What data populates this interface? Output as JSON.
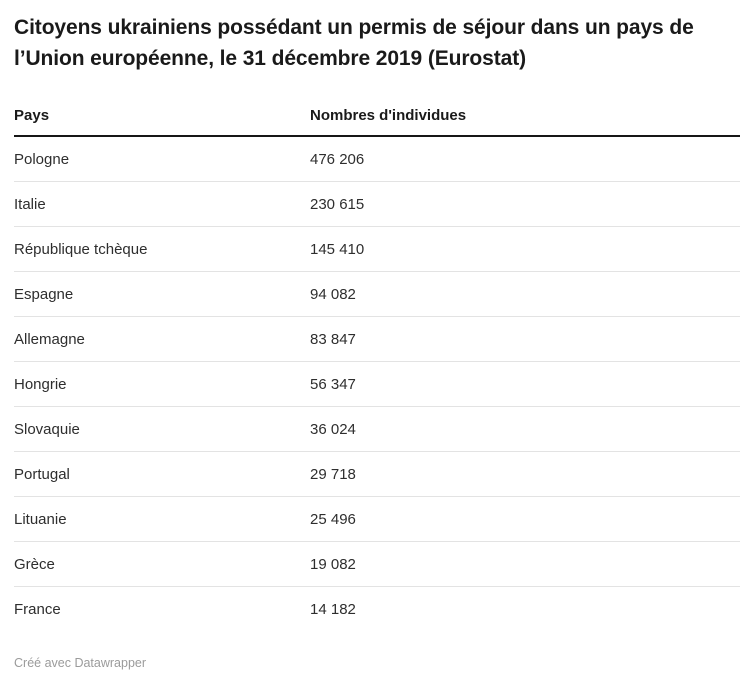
{
  "title": "Citoyens ukrainiens possédant un permis de séjour dans un pays de l’Union européenne, le 31 décembre 2019 (Eurostat)",
  "table": {
    "columns": [
      "Pays",
      "Nombres d'individues"
    ],
    "rows": [
      {
        "pays": "Pologne",
        "valeur": "476 206"
      },
      {
        "pays": "Italie",
        "valeur": "230 615"
      },
      {
        "pays": "République tchèque",
        "valeur": "145 410"
      },
      {
        "pays": "Espagne",
        "valeur": "94 082"
      },
      {
        "pays": "Allemagne",
        "valeur": "83 847"
      },
      {
        "pays": "Hongrie",
        "valeur": "56 347"
      },
      {
        "pays": "Slovaquie",
        "valeur": "36 024"
      },
      {
        "pays": "Portugal",
        "valeur": "29 718"
      },
      {
        "pays": "Lituanie",
        "valeur": "25 496"
      },
      {
        "pays": "Grèce",
        "valeur": "19 082"
      },
      {
        "pays": "France",
        "valeur": "14 182"
      }
    ]
  },
  "footer": {
    "credit": "Créé avec Datawrapper"
  },
  "colors": {
    "background": "#ffffff",
    "title_text": "#1a1a1a",
    "body_text": "#2e2e2e",
    "header_border": "#161616",
    "row_separator": "#e3e3e3",
    "credit_text": "#9b9b9b"
  },
  "chart_data": {
    "type": "table",
    "title": "Citoyens ukrainiens possédant un permis de séjour dans un pays de l’Union européenne, le 31 décembre 2019 (Eurostat)",
    "columns": [
      "Pays",
      "Nombres d'individues"
    ],
    "categories": [
      "Pologne",
      "Italie",
      "République tchèque",
      "Espagne",
      "Allemagne",
      "Hongrie",
      "Slovaquie",
      "Portugal",
      "Lituanie",
      "Grèce",
      "France"
    ],
    "values": [
      476206,
      230615,
      145410,
      94082,
      83847,
      56347,
      36024,
      29718,
      25496,
      19082,
      14182
    ],
    "annotations": [
      "Créé avec Datawrapper"
    ]
  }
}
